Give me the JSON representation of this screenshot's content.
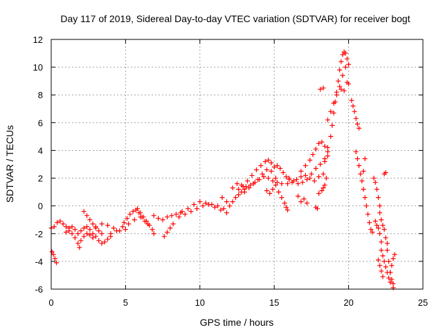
{
  "chart_data": {
    "type": "scatter",
    "title": "Day 117 of 2019, Sidereal Day-to-day VTEC variation (SDTVAR) for receiver bogt",
    "xlabel": "GPS time / hours",
    "ylabel": "SDTVAR / TECUs",
    "xlim": [
      0,
      25
    ],
    "ylim": [
      -6,
      12
    ],
    "xticks": [
      "0",
      "5",
      "10",
      "15",
      "20",
      "25"
    ],
    "yticks": [
      "-6",
      "-4",
      "-2",
      "0",
      "2",
      "4",
      "6",
      "8",
      "10",
      "12"
    ],
    "grid": true,
    "marker": "+",
    "color": "#ff0000",
    "series": [
      {
        "name": "SDTVAR",
        "points": [
          [
            0.0,
            -1.6
          ],
          [
            0.2,
            -1.5
          ],
          [
            0.4,
            -1.2
          ],
          [
            0.6,
            -1.1
          ],
          [
            0.8,
            -1.3
          ],
          [
            1.0,
            -1.5
          ],
          [
            1.2,
            -1.8
          ],
          [
            1.4,
            -2.0
          ],
          [
            1.6,
            -2.3
          ],
          [
            1.8,
            -2.7
          ],
          [
            1.9,
            -3.0
          ],
          [
            0.05,
            -3.3
          ],
          [
            0.15,
            -3.5
          ],
          [
            0.25,
            -3.8
          ],
          [
            0.35,
            -4.1
          ],
          [
            1.0,
            -1.9
          ],
          [
            1.2,
            -1.6
          ],
          [
            1.4,
            -1.5
          ],
          [
            1.6,
            -1.7
          ],
          [
            1.8,
            -2.0
          ],
          [
            2.0,
            -1.8
          ],
          [
            2.2,
            -1.6
          ],
          [
            2.4,
            -1.5
          ],
          [
            2.6,
            -1.7
          ],
          [
            2.8,
            -2.0
          ],
          [
            3.0,
            -2.2
          ],
          [
            3.2,
            -2.5
          ],
          [
            3.4,
            -2.7
          ],
          [
            3.6,
            -2.6
          ],
          [
            3.8,
            -2.4
          ],
          [
            4.0,
            -2.2
          ],
          [
            2.0,
            -2.5
          ],
          [
            2.2,
            -2.2
          ],
          [
            2.4,
            -2.0
          ],
          [
            2.6,
            -2.1
          ],
          [
            2.8,
            -2.3
          ],
          [
            2.2,
            -0.4
          ],
          [
            2.4,
            -0.7
          ],
          [
            2.6,
            -1.0
          ],
          [
            2.8,
            -1.3
          ],
          [
            3.0,
            -1.6
          ],
          [
            3.2,
            -1.8
          ],
          [
            3.4,
            -2.0
          ],
          [
            3.0,
            -1.5
          ],
          [
            3.4,
            -1.3
          ],
          [
            3.8,
            -1.4
          ],
          [
            4.2,
            -1.6
          ],
          [
            4.6,
            -1.8
          ],
          [
            5.0,
            -1.7
          ],
          [
            4.0,
            -2.0
          ],
          [
            4.4,
            -1.8
          ],
          [
            4.8,
            -1.5
          ],
          [
            5.2,
            -1.3
          ],
          [
            5.6,
            -1.0
          ],
          [
            6.0,
            -0.8
          ],
          [
            4.9,
            -1.2
          ],
          [
            5.1,
            -0.9
          ],
          [
            5.3,
            -0.6
          ],
          [
            5.5,
            -0.4
          ],
          [
            5.7,
            -0.3
          ],
          [
            5.9,
            -0.5
          ],
          [
            6.1,
            -0.8
          ],
          [
            6.3,
            -1.1
          ],
          [
            6.5,
            -1.3
          ],
          [
            5.8,
            -0.2
          ],
          [
            6.0,
            -0.5
          ],
          [
            6.2,
            -0.8
          ],
          [
            6.4,
            -1.1
          ],
          [
            6.6,
            -1.4
          ],
          [
            6.8,
            -1.7
          ],
          [
            6.9,
            -2.0
          ],
          [
            6.9,
            -0.7
          ],
          [
            7.2,
            -0.9
          ],
          [
            7.5,
            -1.0
          ],
          [
            7.8,
            -0.8
          ],
          [
            8.1,
            -0.7
          ],
          [
            8.4,
            -0.6
          ],
          [
            8.7,
            -0.5
          ],
          [
            7.6,
            -2.2
          ],
          [
            7.8,
            -1.9
          ],
          [
            8.0,
            -1.6
          ],
          [
            8.2,
            -1.3
          ],
          [
            8.6,
            -0.8
          ],
          [
            9.0,
            -0.6
          ],
          [
            9.4,
            -0.4
          ],
          [
            9.8,
            -0.2
          ],
          [
            10.2,
            0.0
          ],
          [
            10.6,
            0.1
          ],
          [
            11.0,
            -0.1
          ],
          [
            11.4,
            -0.3
          ],
          [
            11.8,
            -0.5
          ],
          [
            8.8,
            -0.4
          ],
          [
            9.2,
            -0.2
          ],
          [
            9.6,
            0.1
          ],
          [
            10.0,
            0.3
          ],
          [
            10.4,
            0.2
          ],
          [
            10.8,
            0.1
          ],
          [
            11.2,
            0.0
          ],
          [
            11.6,
            -0.2
          ],
          [
            11.5,
            0.6
          ],
          [
            11.8,
            0.3
          ],
          [
            12.0,
            0.0
          ],
          [
            12.2,
            0.3
          ],
          [
            12.4,
            0.6
          ],
          [
            12.6,
            0.8
          ],
          [
            12.8,
            1.0
          ],
          [
            13.0,
            1.2
          ],
          [
            12.2,
            1.3
          ],
          [
            12.5,
            1.6
          ],
          [
            12.8,
            1.5
          ],
          [
            13.1,
            1.4
          ],
          [
            13.4,
            1.5
          ],
          [
            13.7,
            1.7
          ],
          [
            14.0,
            1.9
          ],
          [
            14.3,
            2.1
          ],
          [
            14.6,
            2.0
          ],
          [
            14.9,
            1.8
          ],
          [
            15.2,
            1.7
          ],
          [
            15.5,
            1.6
          ],
          [
            12.6,
            1.2
          ],
          [
            12.9,
            1.4
          ],
          [
            13.2,
            1.8
          ],
          [
            13.5,
            2.2
          ],
          [
            13.8,
            2.6
          ],
          [
            14.1,
            2.9
          ],
          [
            14.4,
            3.2
          ],
          [
            14.6,
            3.3
          ],
          [
            14.8,
            3.1
          ],
          [
            15.0,
            2.8
          ],
          [
            15.2,
            2.9
          ],
          [
            15.4,
            2.7
          ],
          [
            15.6,
            2.4
          ],
          [
            15.8,
            2.1
          ],
          [
            16.0,
            1.9
          ],
          [
            13.0,
            1.0
          ],
          [
            13.3,
            1.3
          ],
          [
            13.6,
            1.6
          ],
          [
            13.9,
            1.9
          ],
          [
            14.2,
            2.3
          ],
          [
            14.5,
            2.6
          ],
          [
            14.8,
            2.5
          ],
          [
            15.1,
            2.0
          ],
          [
            14.5,
            1.1
          ],
          [
            14.7,
            0.9
          ],
          [
            14.9,
            1.2
          ],
          [
            15.1,
            1.5
          ],
          [
            15.3,
            1.0
          ],
          [
            15.5,
            0.6
          ],
          [
            15.7,
            0.2
          ],
          [
            15.8,
            -0.1
          ],
          [
            15.9,
            -0.3
          ],
          [
            15.9,
            1.6
          ],
          [
            16.2,
            1.7
          ],
          [
            16.5,
            1.9
          ],
          [
            16.8,
            2.1
          ],
          [
            17.1,
            2.2
          ],
          [
            17.4,
            2.0
          ],
          [
            17.7,
            1.8
          ],
          [
            18.0,
            2.1
          ],
          [
            18.3,
            2.3
          ],
          [
            16.0,
            2.0
          ],
          [
            16.3,
            1.8
          ],
          [
            16.6,
            1.6
          ],
          [
            16.9,
            1.7
          ],
          [
            17.2,
            1.9
          ],
          [
            17.5,
            2.3
          ],
          [
            17.8,
            2.7
          ],
          [
            18.1,
            3.0
          ],
          [
            18.4,
            3.2
          ],
          [
            18.6,
            3.6
          ],
          [
            16.8,
            2.5
          ],
          [
            17.1,
            2.9
          ],
          [
            17.4,
            3.3
          ],
          [
            17.6,
            3.7
          ],
          [
            17.8,
            4.1
          ],
          [
            18.0,
            4.5
          ],
          [
            18.2,
            4.6
          ],
          [
            18.4,
            4.3
          ],
          [
            18.6,
            3.9
          ],
          [
            16.6,
            0.7
          ],
          [
            16.8,
            0.3
          ],
          [
            17.0,
            0.5
          ],
          [
            17.2,
            0.2
          ],
          [
            17.8,
            -0.1
          ],
          [
            17.9,
            -0.2
          ],
          [
            18.0,
            0.9
          ],
          [
            18.2,
            1.1
          ],
          [
            18.3,
            1.3
          ],
          [
            18.4,
            1.5
          ],
          [
            18.5,
            2.0
          ],
          [
            18.4,
            3.4
          ],
          [
            18.6,
            4.2
          ],
          [
            18.8,
            5.0
          ],
          [
            18.9,
            5.8
          ],
          [
            19.0,
            6.7
          ],
          [
            19.1,
            7.5
          ],
          [
            19.2,
            8.2
          ],
          [
            19.3,
            9.0
          ],
          [
            19.4,
            9.8
          ],
          [
            19.5,
            10.4
          ],
          [
            19.6,
            10.9
          ],
          [
            19.7,
            11.1
          ],
          [
            19.8,
            11.0
          ],
          [
            19.9,
            10.6
          ],
          [
            20.0,
            10.2
          ],
          [
            18.6,
            6.2
          ],
          [
            18.8,
            6.8
          ],
          [
            19.0,
            7.4
          ],
          [
            19.2,
            8.0
          ],
          [
            19.4,
            8.6
          ],
          [
            19.6,
            9.4
          ],
          [
            19.8,
            10.0
          ],
          [
            18.1,
            8.4
          ],
          [
            18.3,
            8.5
          ],
          [
            19.5,
            8.4
          ],
          [
            19.7,
            8.3
          ],
          [
            19.9,
            8.9
          ],
          [
            20.0,
            8.8
          ],
          [
            20.2,
            7.6
          ],
          [
            20.3,
            7.2
          ],
          [
            20.4,
            6.8
          ],
          [
            20.5,
            6.3
          ],
          [
            20.6,
            5.9
          ],
          [
            20.7,
            5.6
          ],
          [
            20.5,
            3.9
          ],
          [
            20.6,
            3.4
          ],
          [
            20.7,
            2.9
          ],
          [
            20.8,
            2.3
          ],
          [
            20.9,
            1.8
          ],
          [
            21.0,
            1.2
          ],
          [
            21.1,
            0.6
          ],
          [
            21.2,
            0.0
          ],
          [
            21.3,
            -0.6
          ],
          [
            21.4,
            -1.2
          ],
          [
            21.5,
            -1.7
          ],
          [
            21.6,
            -1.9
          ],
          [
            21.0,
            2.5
          ],
          [
            21.1,
            3.4
          ],
          [
            21.7,
            2.0
          ],
          [
            21.8,
            1.7
          ],
          [
            21.9,
            1.2
          ],
          [
            22.0,
            0.6
          ],
          [
            22.1,
            0.0
          ],
          [
            22.1,
            -0.5
          ],
          [
            22.2,
            -1.0
          ],
          [
            22.3,
            -1.4
          ],
          [
            22.4,
            -1.7
          ],
          [
            22.5,
            -2.3
          ],
          [
            22.6,
            -2.7
          ],
          [
            22.6,
            -3.2
          ],
          [
            22.7,
            -4.0
          ],
          [
            22.8,
            -4.8
          ],
          [
            22.9,
            -5.3
          ],
          [
            23.0,
            -5.6
          ],
          [
            23.0,
            -5.9
          ],
          [
            21.8,
            -1.1
          ],
          [
            21.9,
            -1.4
          ],
          [
            22.0,
            -1.6
          ],
          [
            22.1,
            -2.0
          ],
          [
            22.2,
            -2.6
          ],
          [
            22.2,
            -3.2
          ],
          [
            22.3,
            -3.6
          ],
          [
            22.4,
            -4.0
          ],
          [
            22.5,
            -4.4
          ],
          [
            22.6,
            -4.8
          ],
          [
            22.7,
            -5.2
          ],
          [
            22.8,
            -5.5
          ],
          [
            22.0,
            -3.9
          ],
          [
            22.1,
            -4.3
          ],
          [
            22.2,
            -4.7
          ],
          [
            22.3,
            -5.1
          ],
          [
            22.4,
            2.3
          ],
          [
            22.5,
            2.4
          ],
          [
            22.8,
            -4.8
          ],
          [
            22.9,
            -4.3
          ],
          [
            23.0,
            -3.8
          ],
          [
            23.1,
            -3.5
          ]
        ]
      }
    ]
  }
}
